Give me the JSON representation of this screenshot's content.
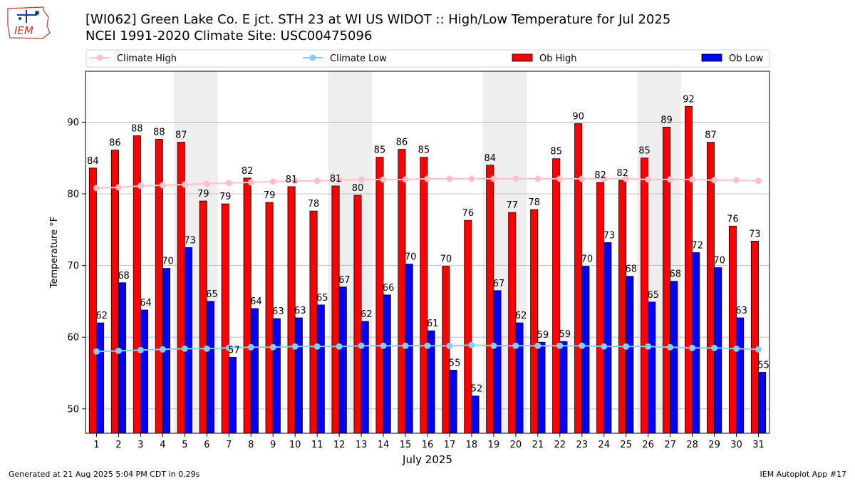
{
  "header": {
    "title_line1": "[WI062] Green Lake Co. E jct. STH 23 at  WI US WIDOT :: High/Low Temperature for Jul 2025",
    "title_line2": "NCEI 1991-2020 Climate Site: USC00475096"
  },
  "logo": {
    "text": "IEM"
  },
  "footer": {
    "generated": "Generated at 21 Aug 2025 5:04 PM CDT in 0.29s",
    "app": "IEM Autoplot App #17"
  },
  "colors": {
    "ob_high": "#ff0000",
    "ob_low": "#0000ff",
    "climate_high": "#ffc0cb",
    "climate_low": "#87ceeb",
    "weekend_shade": "#eeeeee"
  },
  "chart_data": {
    "type": "bar",
    "title": "[WI062] Green Lake Co. E jct. STH 23 at  WI US WIDOT :: High/Low Temperature for Jul 2025",
    "xlabel": "July 2025",
    "ylabel": "Temperature °F",
    "ylim": [
      46.6,
      97.1
    ],
    "yticks": [
      50,
      60,
      70,
      80,
      90
    ],
    "grid": true,
    "legend_position": "top",
    "categories": [
      1,
      2,
      3,
      4,
      5,
      6,
      7,
      8,
      9,
      10,
      11,
      12,
      13,
      14,
      15,
      16,
      17,
      18,
      19,
      20,
      21,
      22,
      23,
      24,
      25,
      26,
      27,
      28,
      29,
      30,
      31
    ],
    "shaded_days": [
      [
        5,
        6
      ],
      [
        12,
        13
      ],
      [
        19,
        20
      ],
      [
        26,
        27
      ]
    ],
    "series": [
      {
        "name": "Ob High",
        "kind": "bar",
        "values": [
          83.6,
          86.1,
          88.1,
          87.6,
          87.2,
          79.0,
          78.6,
          82.2,
          78.8,
          81.0,
          77.6,
          81.1,
          79.8,
          85.1,
          86.2,
          85.1,
          69.9,
          76.3,
          84.0,
          77.4,
          77.8,
          84.9,
          89.8,
          81.6,
          81.9,
          85.0,
          89.3,
          92.2,
          87.2,
          75.5,
          73.4
        ],
        "labels": [
          84,
          86,
          88,
          88,
          87,
          79,
          79,
          82,
          79,
          81,
          78,
          81,
          80,
          85,
          86,
          85,
          70,
          76,
          84,
          77,
          78,
          85,
          90,
          82,
          82,
          85,
          89,
          92,
          87,
          76,
          73
        ]
      },
      {
        "name": "Ob Low",
        "kind": "bar",
        "values": [
          62.0,
          67.6,
          63.8,
          69.6,
          72.5,
          65.0,
          57.2,
          64.0,
          62.6,
          62.7,
          64.5,
          67.0,
          62.2,
          65.9,
          70.2,
          60.9,
          55.4,
          51.8,
          66.5,
          62.0,
          59.3,
          59.4,
          69.9,
          73.2,
          68.5,
          64.9,
          67.8,
          71.8,
          69.7,
          62.7,
          55.1
        ],
        "labels": [
          62,
          68,
          64,
          70,
          73,
          65,
          57,
          64,
          63,
          63,
          65,
          67,
          62,
          66,
          70,
          61,
          55,
          52,
          67,
          62,
          59,
          59,
          70,
          73,
          68,
          65,
          68,
          72,
          70,
          63,
          55
        ]
      },
      {
        "name": "Climate High",
        "kind": "line",
        "values": [
          80.8,
          80.9,
          81.1,
          81.2,
          81.3,
          81.4,
          81.5,
          81.6,
          81.7,
          81.8,
          81.8,
          81.9,
          82.0,
          82.0,
          82.0,
          82.1,
          82.1,
          82.1,
          82.1,
          82.1,
          82.1,
          82.1,
          82.1,
          82.1,
          82.1,
          82.0,
          82.0,
          82.0,
          81.9,
          81.9,
          81.8
        ]
      },
      {
        "name": "Climate Low",
        "kind": "line",
        "values": [
          58.0,
          58.1,
          58.2,
          58.3,
          58.4,
          58.4,
          58.5,
          58.6,
          58.6,
          58.7,
          58.7,
          58.7,
          58.8,
          58.8,
          58.8,
          58.8,
          58.8,
          58.9,
          58.8,
          58.8,
          58.8,
          58.8,
          58.8,
          58.7,
          58.7,
          58.7,
          58.6,
          58.5,
          58.5,
          58.4,
          58.3
        ]
      }
    ]
  }
}
